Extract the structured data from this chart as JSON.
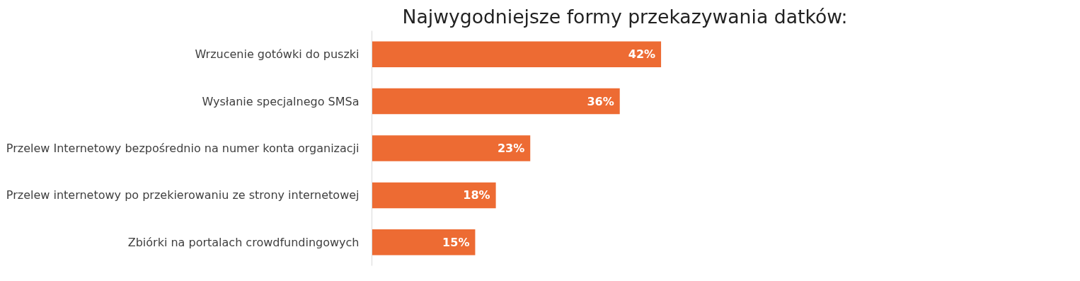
{
  "chart_data": {
    "type": "bar",
    "orientation": "horizontal",
    "title": "Najwygodniejsze formy przekazywania datków:",
    "categories": [
      "Wrzucenie gotówki do puszki",
      "Wysłanie specjalnego SMSa",
      "Przelew Internetowy bezpośrednio na numer konta organizacji",
      "Przelew internetowy po przekierowaniu ze strony internetowej",
      "Zbiórki na portalach crowdfundingowych"
    ],
    "values": [
      42,
      36,
      23,
      18,
      15
    ],
    "value_labels": [
      "42%",
      "36%",
      "23%",
      "18%",
      "15%"
    ],
    "color": "#ed6b33",
    "grid": false
  }
}
